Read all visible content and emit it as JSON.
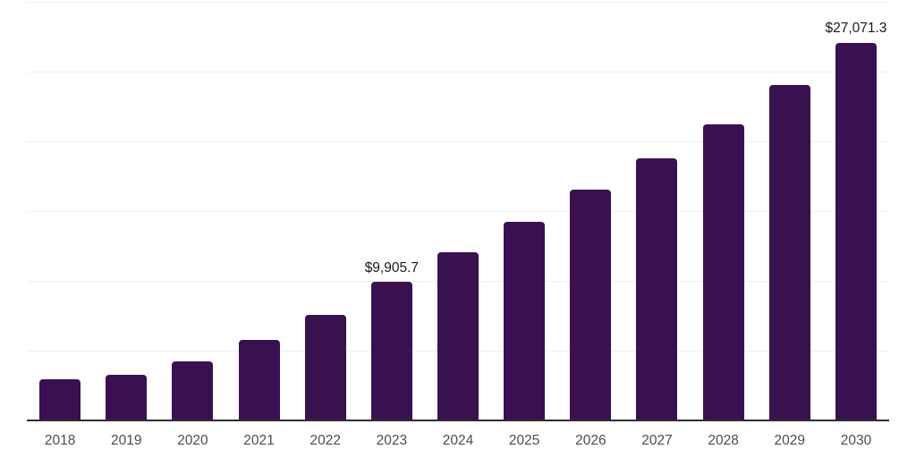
{
  "chart_data": {
    "type": "bar",
    "title": "",
    "xlabel": "",
    "ylabel": "",
    "categories": [
      "2018",
      "2019",
      "2020",
      "2021",
      "2022",
      "2023",
      "2024",
      "2025",
      "2026",
      "2027",
      "2028",
      "2029",
      "2030"
    ],
    "values": [
      2950,
      3300,
      4210,
      5740,
      7550,
      9905.7,
      12040,
      14240,
      16530,
      18770,
      21230,
      24050,
      27071.3
    ],
    "value_labels": {
      "2023": "$9,905.7",
      "2030": "$27,071.3"
    },
    "ylim": [
      0,
      30000
    ],
    "gridline_step": 5000,
    "grid": true,
    "legend": "none",
    "colors": {
      "bar": "#3a1150",
      "axis": "#2e2e2e",
      "gridline": "#f0f0f0",
      "tick_label": "#4d4d4d",
      "data_label": "#1a1a1a",
      "background": "#ffffff"
    }
  }
}
